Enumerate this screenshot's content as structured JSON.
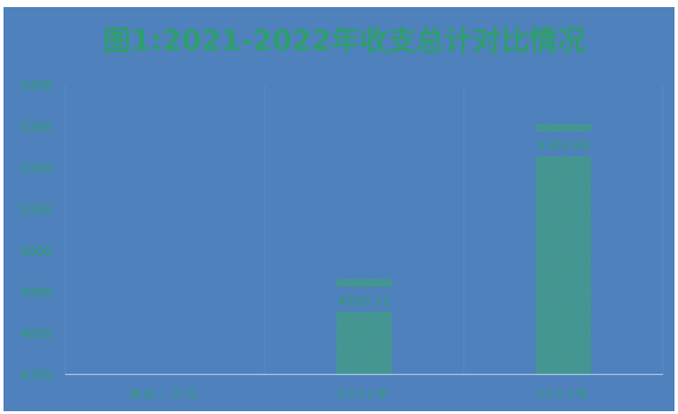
{
  "chart_data": {
    "type": "bar",
    "title": "图1:2021-2022年收支总计对比情况",
    "categories": [
      "单位：万元",
      "2021年",
      "2022年"
    ],
    "series": [
      {
        "values": [
          null,
          4930.51,
          5305.88
        ]
      }
    ],
    "data_labels": [
      "",
      "4930.51",
      "5305.88"
    ],
    "yticks": [
      "4700",
      "4800",
      "4900",
      "5000",
      "5100",
      "5200",
      "5300",
      "5400"
    ],
    "ylim": [
      4700,
      5400
    ],
    "grid": "vertical",
    "legend": "none",
    "colors": {
      "background": "#4f81bd",
      "text": "#2f9e6e",
      "bar": "#3e9a86",
      "hatch": "#4e8fa6",
      "gridline": "#5a8bc2",
      "axis": "#b4cbe6"
    }
  }
}
